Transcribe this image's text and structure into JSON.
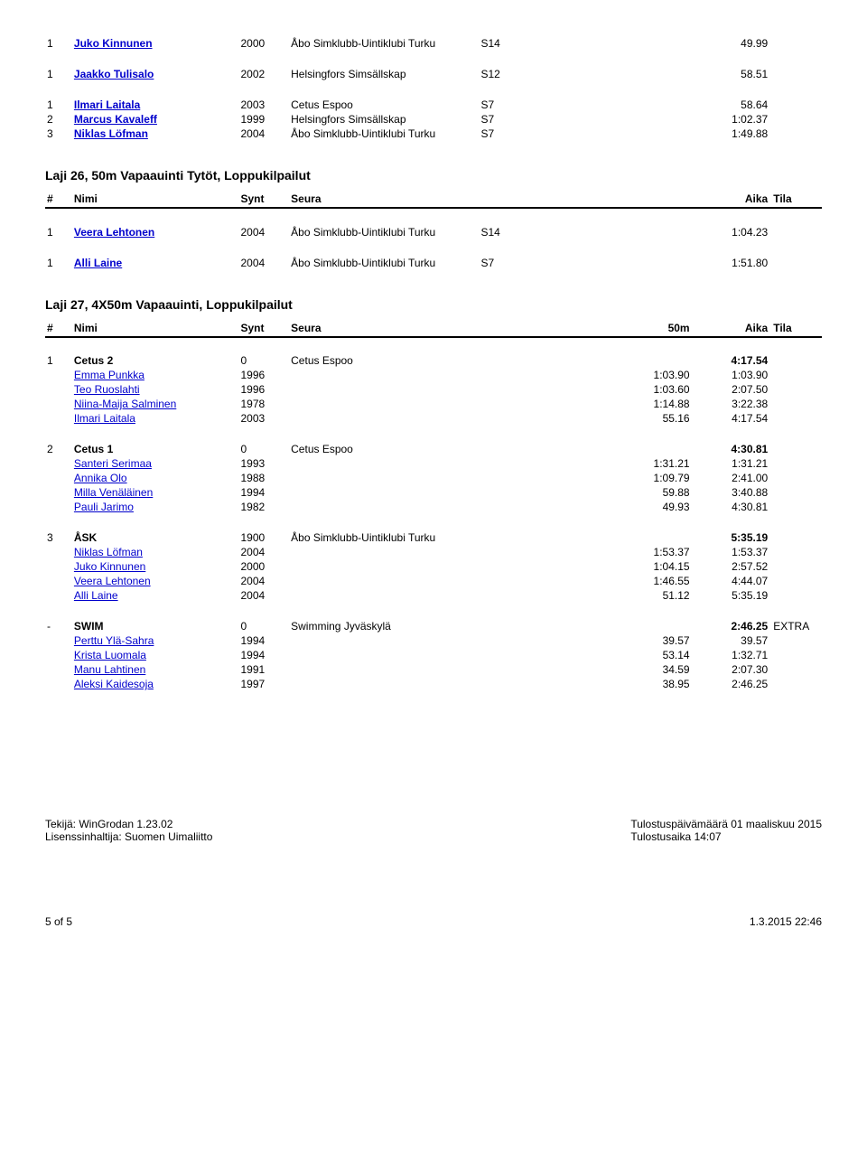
{
  "section1": {
    "rows": [
      {
        "rank": "1",
        "name": "Juko Kinnunen",
        "link": true,
        "year": "2000",
        "club": "Åbo Simklubb-Uintiklubi Turku",
        "class": "S14",
        "time": "49.99",
        "bold": true
      },
      {
        "spacer": true
      },
      {
        "rank": "1",
        "name": "Jaakko Tulisalo",
        "link": true,
        "year": "2002",
        "club": "Helsingfors Simsällskap",
        "class": "S12",
        "time": "58.51",
        "bold": true
      },
      {
        "spacer": true
      },
      {
        "rank": "1",
        "name": "Ilmari Laitala",
        "link": true,
        "year": "2003",
        "club": "Cetus Espoo",
        "class": "S7",
        "time": "58.64",
        "bold": true
      },
      {
        "rank": "2",
        "name": "Marcus Kavaleff",
        "link": true,
        "year": "1999",
        "club": "Helsingfors Simsällskap",
        "class": "S7",
        "time": "1:02.37",
        "bold": true
      },
      {
        "rank": "3",
        "name": "Niklas Löfman",
        "link": true,
        "year": "2004",
        "club": "Åbo Simklubb-Uintiklubi Turku",
        "class": "S7",
        "time": "1:49.88",
        "bold": true
      }
    ]
  },
  "section2": {
    "title": "Laji 26, 50m Vapaauinti Tytöt, Loppukilpailut",
    "cols": {
      "c1": "#",
      "c2": "Nimi",
      "c3": "Synt",
      "c4": "Seura",
      "c5": "",
      "c6": "",
      "c7": "Aika",
      "c8": "Tila"
    },
    "rows": [
      {
        "rank": "1",
        "name": "Veera Lehtonen",
        "link": true,
        "year": "2004",
        "club": "Åbo Simklubb-Uintiklubi Turku",
        "class": "S14",
        "time": "1:04.23",
        "bold": true
      },
      {
        "spacer": true
      },
      {
        "rank": "1",
        "name": "Alli Laine",
        "link": true,
        "year": "2004",
        "club": "Åbo Simklubb-Uintiklubi Turku",
        "class": "S7",
        "time": "1:51.80",
        "bold": true
      }
    ]
  },
  "section3": {
    "title": "Laji 27, 4X50m Vapaauinti, Loppukilpailut",
    "cols": {
      "c1": "#",
      "c2": "Nimi",
      "c3": "Synt",
      "c4": "Seura",
      "c5": "",
      "c6": "50m",
      "c7": "Aika",
      "c8": "Tila"
    },
    "groups": [
      {
        "head": {
          "rank": "1",
          "name": "Cetus 2",
          "year": "0",
          "club": "Cetus Espoo",
          "time": "4:17.54"
        },
        "members": [
          {
            "name": "Emma Punkka",
            "year": "1996",
            "split": "1:03.90",
            "time": "1:03.90"
          },
          {
            "name": "Teo Ruoslahti",
            "year": "1996",
            "split": "1:03.60",
            "time": "2:07.50"
          },
          {
            "name": "Niina-Maija Salminen",
            "year": "1978",
            "split": "1:14.88",
            "time": "3:22.38"
          },
          {
            "name": "Ilmari Laitala",
            "year": "2003",
            "split": "55.16",
            "time": "4:17.54"
          }
        ]
      },
      {
        "head": {
          "rank": "2",
          "name": "Cetus 1",
          "year": "0",
          "club": "Cetus Espoo",
          "time": "4:30.81"
        },
        "members": [
          {
            "name": "Santeri Serimaa",
            "year": "1993",
            "split": "1:31.21",
            "time": "1:31.21"
          },
          {
            "name": "Annika Olo",
            "year": "1988",
            "split": "1:09.79",
            "time": "2:41.00"
          },
          {
            "name": "Milla Venäläinen",
            "year": "1994",
            "split": "59.88",
            "time": "3:40.88"
          },
          {
            "name": "Pauli Jarimo",
            "year": "1982",
            "split": "49.93",
            "time": "4:30.81"
          }
        ]
      },
      {
        "head": {
          "rank": "3",
          "name": "ÅSK",
          "year": "1900",
          "club": "Åbo Simklubb-Uintiklubi Turku",
          "time": "5:35.19"
        },
        "members": [
          {
            "name": "Niklas Löfman",
            "year": "2004",
            "split": "1:53.37",
            "time": "1:53.37"
          },
          {
            "name": "Juko Kinnunen",
            "year": "2000",
            "split": "1:04.15",
            "time": "2:57.52"
          },
          {
            "name": "Veera Lehtonen",
            "year": "2004",
            "split": "1:46.55",
            "time": "4:44.07"
          },
          {
            "name": "Alli Laine",
            "year": "2004",
            "split": "51.12",
            "time": "5:35.19"
          }
        ]
      },
      {
        "head": {
          "rank": "-",
          "name": "SWIM",
          "year": "0",
          "club": "Swimming Jyväskylä",
          "time": "2:46.25",
          "extra": "EXTRA"
        },
        "members": [
          {
            "name": "Perttu Ylä-Sahra",
            "year": "1994",
            "split": "39.57",
            "time": "39.57"
          },
          {
            "name": "Krista Luomala",
            "year": "1994",
            "split": "53.14",
            "time": "1:32.71"
          },
          {
            "name": "Manu Lahtinen",
            "year": "1991",
            "split": "34.59",
            "time": "2:07.30"
          },
          {
            "name": "Aleksi Kaidesoja",
            "year": "1997",
            "split": "38.95",
            "time": "2:46.25"
          }
        ]
      }
    ]
  },
  "footer": {
    "left1": "Tekijä: WinGrodan 1.23.02",
    "left2": "Lisenssinhaltija: Suomen Uimaliitto",
    "right1": "Tulostuspäivämäärä 01 maaliskuu 2015",
    "right2": "Tulostusaika 14:07"
  },
  "pagebottom": {
    "left": "5 of 5",
    "right": "1.3.2015 22:46"
  }
}
